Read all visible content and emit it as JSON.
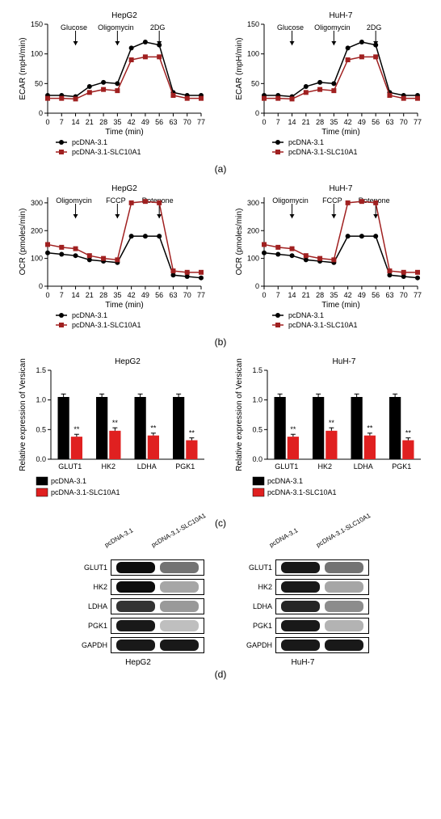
{
  "figure": {
    "panel_a": {
      "type": "line",
      "layout": "two-column",
      "cell_lines": [
        "HepG2",
        "HuH-7"
      ],
      "x_label": "Time (min)",
      "y_label": "ECAR (mpH/min)",
      "x_ticks": [
        0,
        7,
        14,
        21,
        28,
        35,
        42,
        49,
        56,
        63,
        70,
        77
      ],
      "y_ticks": [
        0,
        50,
        100,
        150
      ],
      "ylim": [
        0,
        150
      ],
      "xlim": [
        0,
        77
      ],
      "annotations": [
        {
          "label": "Glucose",
          "x": 14
        },
        {
          "label": "Oligomycin",
          "x": 35
        },
        {
          "label": "2DG",
          "x": 56
        }
      ],
      "series": [
        {
          "name": "pcDNA-3.1",
          "color": "#000000",
          "marker": "circle",
          "x": [
            0,
            7,
            14,
            21,
            28,
            35,
            42,
            49,
            56,
            63,
            70,
            77
          ],
          "y": [
            30,
            30,
            28,
            45,
            52,
            50,
            110,
            120,
            115,
            35,
            30,
            30
          ]
        },
        {
          "name": "pcDNA-3.1-SLC10A1",
          "color": "#a02020",
          "marker": "square",
          "x": [
            0,
            7,
            14,
            21,
            28,
            35,
            42,
            49,
            56,
            63,
            70,
            77
          ],
          "y": [
            25,
            25,
            24,
            35,
            40,
            38,
            90,
            95,
            95,
            30,
            25,
            25
          ]
        }
      ],
      "legend": [
        "pcDNA-3.1",
        "pcDNA-3.1-SLC10A1"
      ]
    },
    "panel_b": {
      "type": "line",
      "layout": "two-column",
      "cell_lines": [
        "HepG2",
        "HuH-7"
      ],
      "x_label": "Time (min)",
      "y_label": "OCR (pmoles/min)",
      "x_ticks": [
        0,
        7,
        14,
        21,
        28,
        35,
        42,
        49,
        56,
        63,
        70,
        77
      ],
      "y_ticks": [
        0,
        100,
        200,
        300
      ],
      "ylim": [
        0,
        320
      ],
      "xlim": [
        0,
        77
      ],
      "annotations": [
        {
          "label": "Oligomycin",
          "x": 14
        },
        {
          "label": "FCCP",
          "x": 35
        },
        {
          "label": "Rotenone",
          "x": 56
        }
      ],
      "series": [
        {
          "name": "pcDNA-3.1",
          "color": "#000000",
          "marker": "circle",
          "x": [
            0,
            7,
            14,
            21,
            28,
            35,
            42,
            49,
            56,
            63,
            70,
            77
          ],
          "y": [
            120,
            115,
            110,
            95,
            90,
            85,
            180,
            180,
            180,
            40,
            35,
            30
          ]
        },
        {
          "name": "pcDNA-3.1-SLC10A1",
          "color": "#a02020",
          "marker": "square",
          "x": [
            0,
            7,
            14,
            21,
            28,
            35,
            42,
            49,
            56,
            63,
            70,
            77
          ],
          "y": [
            150,
            140,
            135,
            110,
            100,
            95,
            300,
            305,
            300,
            55,
            50,
            50
          ]
        }
      ],
      "legend": [
        "pcDNA-3.1",
        "pcDNA-3.1-SLC10A1"
      ]
    },
    "panel_c": {
      "type": "bar",
      "layout": "two-column",
      "cell_lines": [
        "HepG2",
        "HuH-7"
      ],
      "y_label": "Relative expression of Versican",
      "y_ticks": [
        0.0,
        0.5,
        1.0,
        1.5
      ],
      "ylim": [
        0,
        1.5
      ],
      "categories": [
        "GLUT1",
        "HK2",
        "LDHA",
        "PGK1"
      ],
      "groups": [
        {
          "name": "pcDNA-3.1",
          "color": "#000000"
        },
        {
          "name": "pcDNA-3.1-SLC10A1",
          "color": "#e02020"
        }
      ],
      "values": {
        "pcDNA-3.1": [
          1.05,
          1.05,
          1.05,
          1.05
        ],
        "pcDNA-3.1-SLC10A1": [
          0.38,
          0.48,
          0.4,
          0.32
        ]
      },
      "error_bars": {
        "pcDNA-3.1": [
          0.05,
          0.05,
          0.05,
          0.05
        ],
        "pcDNA-3.1-SLC10A1": [
          0.04,
          0.05,
          0.04,
          0.04
        ]
      },
      "significance": [
        "**",
        "**",
        "**",
        "**"
      ],
      "legend": [
        "pcDNA-3.1",
        "pcDNA-3.1-SLC10A1"
      ]
    },
    "panel_d": {
      "type": "western_blot",
      "cell_lines": [
        "HepG2",
        "HuH-7"
      ],
      "lanes": [
        "pcDNA-3.1",
        "pcDNA-3.1-SLC10A1"
      ],
      "proteins": [
        "GLUT1",
        "HK2",
        "LDHA",
        "PGK1",
        "GAPDH"
      ],
      "band_width": 48,
      "band_intensity": {
        "HepG2": {
          "GLUT1": [
            0.95,
            0.55
          ],
          "HK2": [
            0.95,
            0.35
          ],
          "LDHA": [
            0.8,
            0.4
          ],
          "PGK1": [
            0.9,
            0.25
          ],
          "GAPDH": [
            0.9,
            0.9
          ]
        },
        "HuH-7": {
          "GLUT1": [
            0.9,
            0.55
          ],
          "HK2": [
            0.9,
            0.35
          ],
          "LDHA": [
            0.85,
            0.45
          ],
          "PGK1": [
            0.9,
            0.3
          ],
          "GAPDH": [
            0.9,
            0.9
          ]
        }
      }
    },
    "panel_labels": {
      "a": "(a)",
      "b": "(b)",
      "c": "(c)",
      "d": "(d)"
    }
  }
}
